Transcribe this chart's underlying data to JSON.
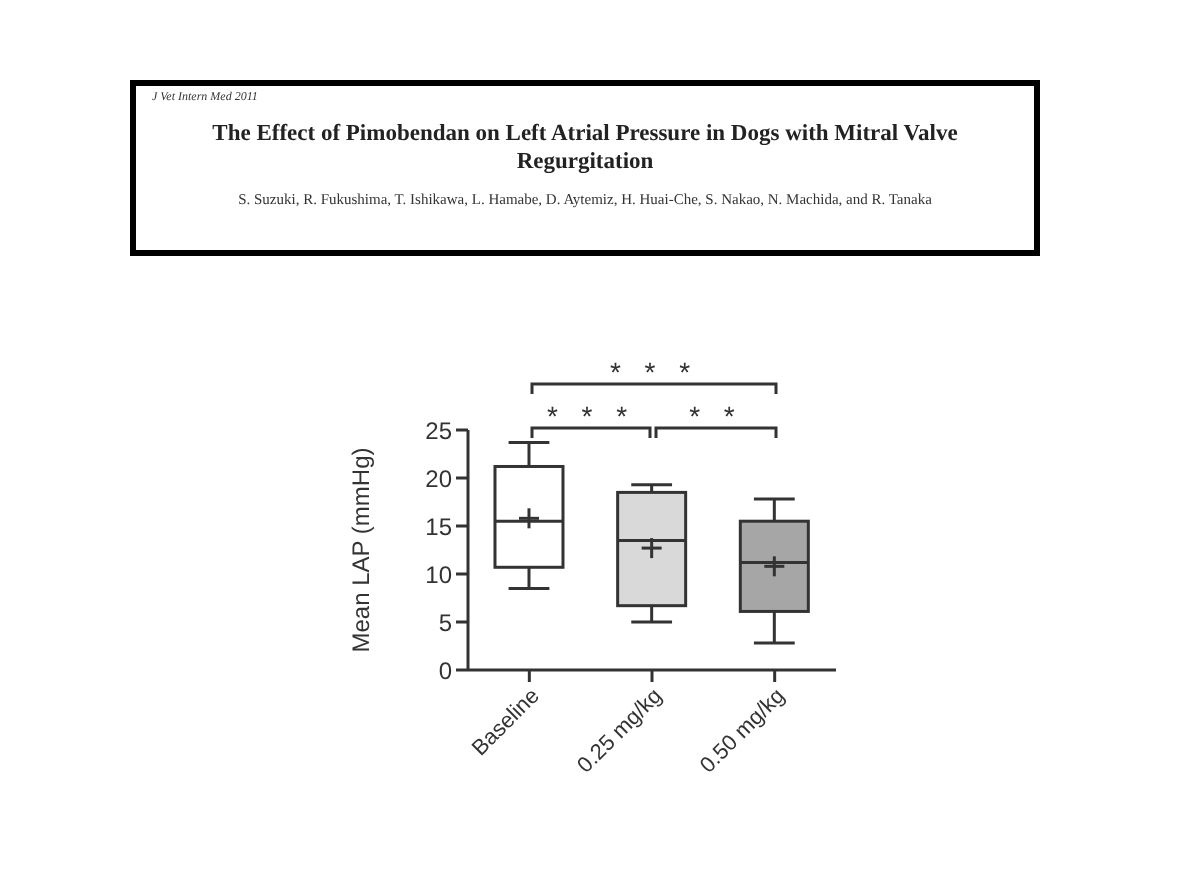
{
  "chart_data": {
    "type": "box",
    "title": "The Effect of Pimobendan on Left Atrial Pressure in Dogs with Mitral Valve Regurgitation",
    "subtitle": "S. Suzuki, R. Fukushima, T. Ishikawa, L. Hamabe, D. Aytemiz, H. Huai-Che, S. Nakao, N. Machida, and R. Tanaka",
    "annotations": [
      "J Vet Intern Med 2011",
      "* * *",
      "* * *",
      "* *"
    ],
    "ylabel": "Mean LAP (mmHg)",
    "categories": [
      "Baseline",
      "0.25 mg/kg",
      "0.50 mg/kg"
    ],
    "boxes": [
      {
        "low": 8.5,
        "q1": 10.7,
        "median": 15.5,
        "q3": 21.2,
        "high": 23.7,
        "mean": 15.8
      },
      {
        "low": 5,
        "q1": 6.7,
        "median": 13.5,
        "q3": 18.5,
        "high": 19.3,
        "mean": 12.7
      },
      {
        "low": 2.8,
        "q1": 6.1,
        "median": 11.2,
        "q3": 15.5,
        "high": 17.8,
        "mean": 10.8
      }
    ],
    "colors": [
      "#ffffff",
      "#d9d9d9",
      "#a6a6a6"
    ],
    "ylim": [
      0,
      25
    ],
    "yticks": [
      0,
      5,
      10,
      15,
      20,
      25
    ],
    "grid": false,
    "legend": false
  }
}
